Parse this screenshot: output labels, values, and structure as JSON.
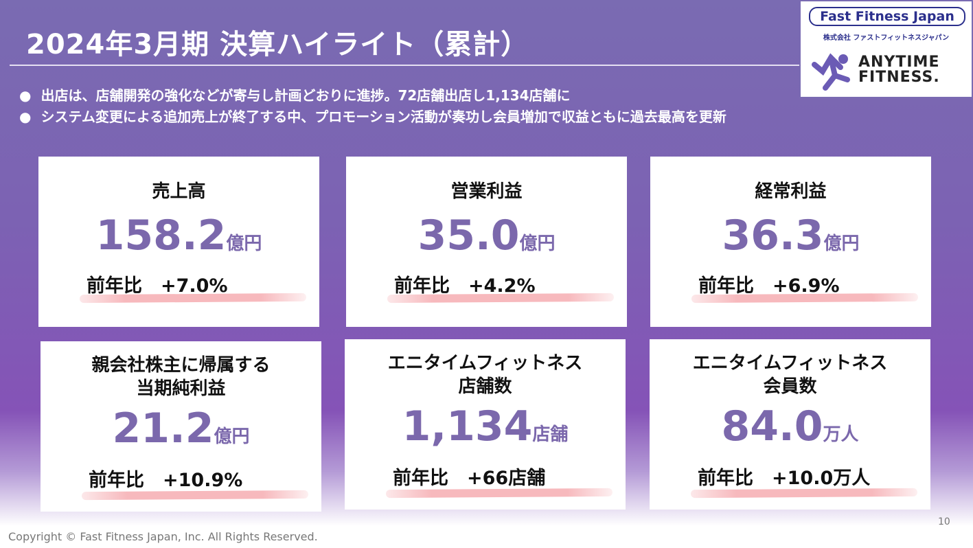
{
  "title": "2024年3月期 決算ハイライト（累計）",
  "bullets": [
    "出店は、店舗開発の強化などが寄与し計画どおりに進捗。72店舗出店し1,134店舗に",
    "システム変更による追加売上が終了する中、プロモーション活動が奏功し会員増加で収益ともに過去最高を更新"
  ],
  "logo": {
    "company_en": "Fast Fitness Japan",
    "company_ja": "株式会社 ファストフィットネスジャパン",
    "brand": "ANYTIME FITNESS",
    "brand_color": "#6b5bb5"
  },
  "cards": [
    {
      "label": "売上高",
      "value": "158.2",
      "unit": "億円",
      "yoy": "前年比　+7.0%"
    },
    {
      "label": "営業利益",
      "value": "35.0",
      "unit": "億円",
      "yoy": "前年比　+4.2%"
    },
    {
      "label": "経常利益",
      "value": "36.3",
      "unit": "億円",
      "yoy": "前年比　+6.9%"
    },
    {
      "label": "親会社株主に帰属する\n当期純利益",
      "value": "21.2",
      "unit": "億円",
      "yoy": "前年比　+10.9%"
    },
    {
      "label": "エニタイムフィットネス\n店舗数",
      "value": "1,134",
      "unit": "店舗",
      "yoy": "前年比　+66店舗"
    },
    {
      "label": "エニタイムフィットネス\n会員数",
      "value": "84.0",
      "unit": "万人",
      "yoy": "前年比　+10.0万人"
    }
  ],
  "footer": {
    "copyright": "Copyright © Fast Fitness Japan, Inc. All Rights Reserved.",
    "page": "10"
  },
  "colors": {
    "accent": "#7b68ac",
    "highlight": "#f7b9bd"
  }
}
